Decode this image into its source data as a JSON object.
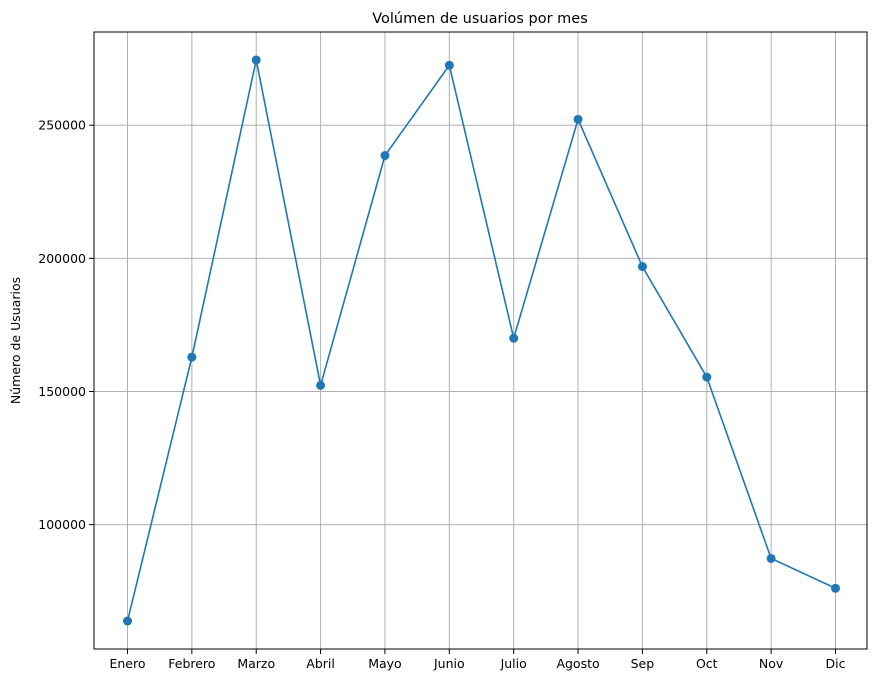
{
  "chart_data": {
    "type": "line",
    "title": "Volúmen de usuarios por mes",
    "xlabel": "",
    "ylabel": "Número de Usuarios",
    "categories": [
      "Enero",
      "Febrero",
      "Marzo",
      "Abril",
      "Mayo",
      "Junio",
      "Julio",
      "Agosto",
      "Sep",
      "Oct",
      "Nov",
      "Dic"
    ],
    "series": [
      {
        "values": [
          63800,
          162900,
          274500,
          152300,
          238600,
          272500,
          170000,
          252200,
          196900,
          155400,
          87300,
          76100
        ],
        "color": "#1f77b4"
      }
    ],
    "yticks": [
      100000,
      150000,
      200000,
      250000
    ],
    "ytick_labels": [
      "100000",
      "150000",
      "200000",
      "250000"
    ],
    "ylim": [
      53300,
      285000
    ],
    "grid": true,
    "legend": "none"
  }
}
